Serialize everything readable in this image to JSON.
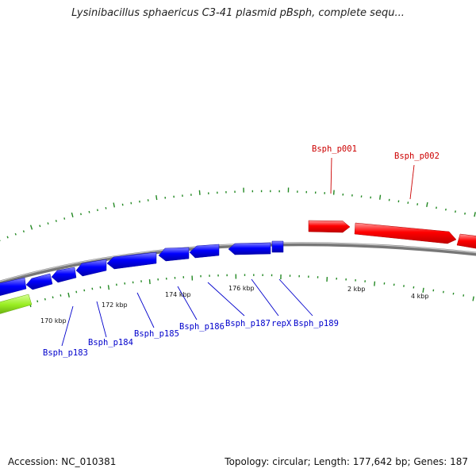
{
  "title": "Lysinibacillus sphaericus C3-41 plasmid pBsph, complete sequ...",
  "footer": {
    "accession": "Accession: NC_010381",
    "summary": "Topology: circular; Length: 177,642 bp; Genes: 187"
  },
  "colors": {
    "forward": "#ff0000",
    "reverse": "#0000ee",
    "lime": "#99ee22",
    "backbone": "#888888",
    "ticks": "#228822",
    "forward_label": "#cc0000",
    "reverse_label": "#0000cc"
  },
  "scale_labels": [
    "170 kbp",
    "172 kbp",
    "174 kbp",
    "176 kbp",
    "2 kbp",
    "4 kbp"
  ],
  "forward_genes": [
    {
      "label": "Bsph_p001"
    },
    {
      "label": "Bsph_p002"
    }
  ],
  "reverse_genes": [
    {
      "label": "Bsph_p183"
    },
    {
      "label": "Bsph_p184"
    },
    {
      "label": "Bsph_p185"
    },
    {
      "label": "Bsph_p186"
    },
    {
      "label": "Bsph_p187"
    },
    {
      "label": "repX"
    },
    {
      "label": "Bsph_p189"
    }
  ]
}
